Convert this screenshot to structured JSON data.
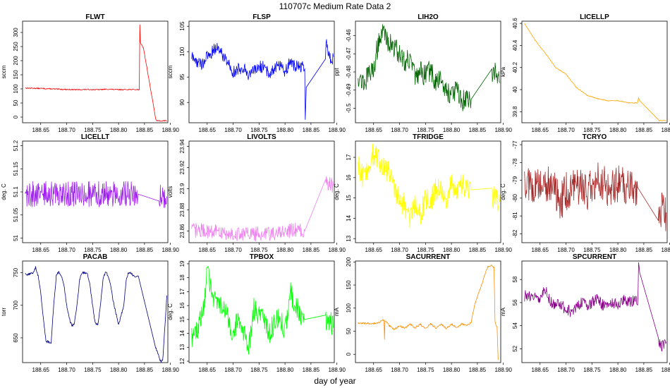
{
  "figure": {
    "title": "110707c   Medium Rate Data 2",
    "xlabel": "day of year"
  },
  "chart_data": [
    {
      "type": "line",
      "title": "FLWT",
      "ylabel": "sccm",
      "color": "#ff0000",
      "xlim": [
        188.615,
        188.895
      ],
      "ylim": [
        -20,
        340
      ],
      "xticks": [
        "188.65",
        "188.70",
        "188.75",
        "188.80",
        "188.85",
        "188.90"
      ],
      "yticks": [
        0,
        50,
        100,
        150,
        200,
        250,
        300
      ],
      "x": [
        188.62,
        188.64,
        188.66,
        188.68,
        188.7,
        188.72,
        188.74,
        188.76,
        188.78,
        188.8,
        188.82,
        188.838,
        188.84,
        188.841,
        188.842,
        188.844,
        188.848,
        188.872,
        188.873,
        188.893
      ],
      "y": [
        103,
        102,
        101,
        99,
        98,
        97,
        98,
        97,
        99,
        97,
        98,
        97,
        98,
        325,
        265,
        258,
        245,
        -10,
        -13,
        -13
      ],
      "noise": 2
    },
    {
      "type": "line",
      "title": "FLSP",
      "ylabel": "sccm",
      "color": "#0000ff",
      "xlim": [
        188.615,
        188.895
      ],
      "ylim": [
        86,
        106
      ],
      "xticks": [
        "188.65",
        "188.70",
        "188.75",
        "188.80",
        "188.85",
        "188.90"
      ],
      "yticks": [
        90,
        95,
        100,
        105
      ],
      "x": [
        188.62,
        188.63,
        188.64,
        188.65,
        188.66,
        188.67,
        188.675,
        188.69,
        188.7,
        188.71,
        188.72,
        188.73,
        188.74,
        188.75,
        188.76,
        188.77,
        188.78,
        188.79,
        188.8,
        188.81,
        188.82,
        188.838,
        188.839,
        188.841,
        188.878,
        188.88,
        188.883,
        188.886,
        188.89,
        188.893
      ],
      "y": [
        99,
        98,
        97.5,
        99,
        100,
        101,
        100,
        98,
        96,
        96.5,
        97,
        95.5,
        96,
        97,
        97,
        95.5,
        97,
        97.5,
        96,
        98,
        97,
        97,
        87,
        93,
        99,
        102,
        100,
        99.5,
        98,
        99
      ],
      "noise": 1.2
    },
    {
      "type": "line",
      "title": "LIH2O",
      "ylabel": "ppt",
      "color": "#006400",
      "xlim": [
        188.615,
        188.895
      ],
      "ylim": [
        -0.508,
        -0.452
      ],
      "xticks": [
        "188.65",
        "188.70",
        "188.75",
        "188.80",
        "188.85",
        "188.90"
      ],
      "yticks": [
        -0.5,
        -0.49,
        -0.48,
        -0.47,
        -0.46
      ],
      "x": [
        188.62,
        188.63,
        188.64,
        188.65,
        188.66,
        188.67,
        188.68,
        188.69,
        188.7,
        188.71,
        188.72,
        188.73,
        188.74,
        188.75,
        188.76,
        188.77,
        188.78,
        188.79,
        188.8,
        188.81,
        188.82,
        188.838,
        188.878,
        188.885,
        188.893
      ],
      "y": [
        -0.482,
        -0.486,
        -0.482,
        -0.478,
        -0.462,
        -0.458,
        -0.464,
        -0.466,
        -0.47,
        -0.474,
        -0.472,
        -0.484,
        -0.48,
        -0.482,
        -0.479,
        -0.486,
        -0.484,
        -0.49,
        -0.492,
        -0.49,
        -0.496,
        -0.495,
        -0.48,
        -0.478,
        -0.486
      ],
      "noise": 0.006
    },
    {
      "type": "line",
      "title": "LICELLP",
      "ylabel": "kPa",
      "color": "#ffa500",
      "xlim": [
        188.615,
        188.895
      ],
      "ylim": [
        39.7,
        40.62
      ],
      "xticks": [
        "188.65",
        "188.70",
        "188.75",
        "188.80",
        "188.85",
        "188.90"
      ],
      "yticks": [
        39.8,
        40.0,
        40.2,
        40.4,
        40.6
      ],
      "x": [
        188.62,
        188.64,
        188.66,
        188.68,
        188.7,
        188.72,
        188.74,
        188.76,
        188.78,
        188.8,
        188.82,
        188.838,
        188.84,
        188.842,
        188.88,
        188.893
      ],
      "y": [
        40.6,
        40.45,
        40.33,
        40.2,
        40.14,
        40.02,
        39.95,
        39.92,
        39.9,
        39.9,
        39.88,
        39.88,
        39.93,
        39.9,
        39.72,
        39.72
      ],
      "noise": 0.004
    },
    {
      "type": "line",
      "title": "LICELLT",
      "ylabel": "deg. C",
      "color": "#a020f0",
      "xlim": [
        188.615,
        188.895
      ],
      "ylim": [
        50.99,
        51.21
      ],
      "xticks": [
        "188.65",
        "188.70",
        "188.75",
        "188.80",
        "188.85",
        "188.90"
      ],
      "yticks": [
        51.0,
        51.05,
        51.1,
        51.15,
        51.2
      ],
      "x": [
        188.62,
        188.838,
        188.878,
        188.885,
        188.893
      ],
      "y": [
        51.095,
        51.095,
        51.09,
        51.095,
        51.09
      ],
      "noise": 0.028
    },
    {
      "type": "line",
      "title": "LIVOLTS",
      "ylabel": "volts",
      "color": "#ee82ee",
      "xlim": [
        188.615,
        188.895
      ],
      "ylim": [
        23.849,
        23.945
      ],
      "xticks": [
        "188.65",
        "188.70",
        "188.75",
        "188.80",
        "188.85",
        "188.90"
      ],
      "yticks": [
        23.86,
        23.88,
        23.9,
        23.92,
        23.94
      ],
      "x": [
        188.62,
        188.66,
        188.7,
        188.74,
        188.78,
        188.82,
        188.838,
        188.878,
        188.893
      ],
      "y": [
        23.861,
        23.86,
        23.857,
        23.857,
        23.858,
        23.861,
        23.86,
        23.905,
        23.903
      ],
      "noise": 0.007
    },
    {
      "type": "line",
      "title": "TFRIDGE",
      "ylabel": "deg. C",
      "color": "#ffff00",
      "xlim": [
        188.615,
        188.895
      ],
      "ylim": [
        12.8,
        17.8
      ],
      "xticks": [
        "188.65",
        "188.70",
        "188.75",
        "188.80",
        "188.85",
        "188.90"
      ],
      "yticks": [
        13,
        14,
        15,
        16,
        17
      ],
      "x": [
        188.62,
        188.63,
        188.64,
        188.65,
        188.66,
        188.67,
        188.68,
        188.69,
        188.7,
        188.71,
        188.72,
        188.73,
        188.74,
        188.75,
        188.76,
        188.77,
        188.78,
        188.79,
        188.8,
        188.81,
        188.82,
        188.838,
        188.878,
        188.885,
        188.893
      ],
      "y": [
        16.6,
        16.0,
        16.5,
        17.2,
        16.8,
        16.5,
        16.3,
        15.4,
        15.0,
        14.6,
        14.0,
        14.6,
        14.2,
        15.0,
        14.8,
        15.4,
        15.4,
        15.0,
        15.6,
        15.3,
        15.6,
        15.4,
        15.1,
        15.0,
        14.8
      ],
      "noise": 0.6
    },
    {
      "type": "line",
      "title": "TCRYO",
      "ylabel": "deg. C",
      "color": "#a52a2a",
      "xlim": [
        188.615,
        188.895
      ],
      "ylim": [
        -82.5,
        -76.8
      ],
      "xticks": [
        "188.65",
        "188.70",
        "188.75",
        "188.80",
        "188.85",
        "188.90"
      ],
      "yticks": [
        -82,
        -81,
        -80,
        -79,
        -78,
        -77
      ],
      "x": [
        188.62,
        188.64,
        188.66,
        188.68,
        188.69,
        188.7,
        188.72,
        188.74,
        188.76,
        188.78,
        188.8,
        188.82,
        188.838,
        188.878,
        188.893
      ],
      "y": [
        -79.0,
        -79.4,
        -79.2,
        -79.6,
        -80.2,
        -79.6,
        -79.2,
        -79.6,
        -79.0,
        -79.4,
        -79.2,
        -79.3,
        -79.4,
        -80.4,
        -80.8
      ],
      "noise": 1.1
    },
    {
      "type": "line",
      "title": "PACAB",
      "ylabel": "torr",
      "color": "#000080",
      "xlim": [
        188.615,
        188.895
      ],
      "ylim": [
        612,
        768
      ],
      "xticks": [
        "188.65",
        "188.70",
        "188.75",
        "188.80",
        "188.85",
        "188.90"
      ],
      "yticks": [
        650,
        700,
        750
      ],
      "x": [
        188.62,
        188.63,
        188.635,
        188.64,
        188.645,
        188.65,
        188.655,
        188.66,
        188.67,
        188.675,
        188.68,
        188.685,
        188.69,
        188.695,
        188.7,
        188.705,
        188.71,
        188.715,
        188.72,
        188.725,
        188.73,
        188.74,
        188.745,
        188.75,
        188.755,
        188.76,
        188.765,
        188.77,
        188.775,
        188.78,
        188.785,
        188.79,
        188.8,
        188.81,
        188.815,
        188.82,
        188.825,
        188.83,
        188.838,
        188.87,
        188.88,
        188.885,
        188.893
      ],
      "y": [
        748,
        748,
        750,
        758,
        745,
        720,
        680,
        645,
        642,
        700,
        745,
        752,
        745,
        730,
        700,
        680,
        668,
        672,
        700,
        740,
        750,
        750,
        730,
        700,
        672,
        670,
        700,
        740,
        752,
        745,
        730,
        705,
        670,
        700,
        740,
        752,
        748,
        745,
        745,
        640,
        615,
        614,
        715
      ],
      "noise": 2
    },
    {
      "type": "line",
      "title": "TPBOX",
      "ylabel": "deg. C",
      "color": "#00ff00",
      "xlim": [
        188.615,
        188.895
      ],
      "ylim": [
        11.9,
        19.2
      ],
      "xticks": [
        "188.65",
        "188.70",
        "188.75",
        "188.80",
        "188.85",
        "188.90"
      ],
      "yticks": [
        12,
        13,
        14,
        15,
        16,
        17,
        18,
        19
      ],
      "x": [
        188.62,
        188.63,
        188.64,
        188.645,
        188.65,
        188.66,
        188.67,
        188.68,
        188.69,
        188.7,
        188.71,
        188.72,
        188.73,
        188.74,
        188.75,
        188.76,
        188.77,
        188.78,
        188.79,
        188.8,
        188.81,
        188.82,
        188.838,
        188.878,
        188.885,
        188.893
      ],
      "y": [
        13.8,
        14.2,
        15.2,
        16.5,
        18.5,
        17.0,
        15.8,
        16.2,
        15.0,
        13.8,
        15.2,
        14.0,
        13.0,
        15.8,
        15.2,
        15.2,
        14.0,
        14.8,
        15.2,
        14.2,
        17.0,
        16.0,
        15.0,
        15.0,
        15.0,
        14.4
      ],
      "noise": 0.8
    },
    {
      "type": "line",
      "title": "SACURRENT",
      "ylabel": "mA",
      "color": "#ff8c00",
      "xlim": [
        188.615,
        188.895
      ],
      "ylim": [
        -18,
        202
      ],
      "xticks": [
        "188.65",
        "188.70",
        "188.75",
        "188.80",
        "188.85",
        "188.90"
      ],
      "yticks": [
        0,
        50,
        100,
        150,
        200
      ],
      "x": [
        188.62,
        188.65,
        188.66,
        188.665,
        188.67,
        188.671,
        188.672,
        188.68,
        188.69,
        188.7,
        188.71,
        188.72,
        188.73,
        188.74,
        188.75,
        188.76,
        188.77,
        188.78,
        188.79,
        188.8,
        188.81,
        188.82,
        188.83,
        188.838,
        188.845,
        188.87,
        188.878,
        188.882,
        188.884,
        188.886,
        188.888,
        188.89
      ],
      "y": [
        67,
        67,
        68,
        72,
        75,
        32,
        73,
        62,
        54,
        62,
        56,
        66,
        57,
        65,
        56,
        66,
        57,
        65,
        56,
        66,
        57,
        66,
        62,
        70,
        108,
        190,
        192,
        188,
        70,
        63,
        60,
        -12
      ],
      "noise": 2
    },
    {
      "type": "line",
      "title": "SPCURRENT",
      "ylabel": "mA",
      "color": "#8b008b",
      "xlim": [
        188.615,
        188.895
      ],
      "ylim": [
        50.8,
        59.6
      ],
      "xticks": [
        "188.65",
        "188.70",
        "188.75",
        "188.80",
        "188.85",
        "188.90"
      ],
      "yticks": [
        52,
        54,
        56,
        58
      ],
      "x": [
        188.62,
        188.64,
        188.65,
        188.66,
        188.67,
        188.68,
        188.69,
        188.7,
        188.71,
        188.72,
        188.73,
        188.74,
        188.75,
        188.76,
        188.77,
        188.78,
        188.79,
        188.8,
        188.81,
        188.82,
        188.83,
        188.838,
        188.84,
        188.842,
        188.878,
        188.885,
        188.893
      ],
      "y": [
        56.6,
        56.4,
        56.5,
        57.2,
        56.0,
        55.8,
        55.8,
        55.4,
        55.2,
        55.5,
        56.0,
        55.8,
        56.0,
        56.3,
        55.8,
        55.9,
        56.0,
        55.8,
        56.3,
        56.0,
        56.2,
        56.0,
        59.0,
        58.6,
        52.6,
        52.2,
        52.6
      ],
      "noise": 0.5
    }
  ]
}
